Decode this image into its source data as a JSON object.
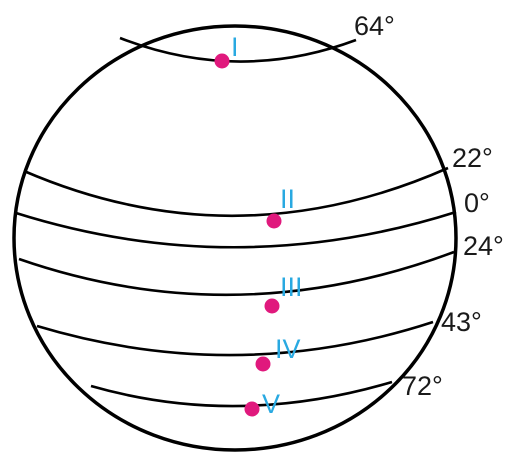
{
  "globe": {
    "colors": {
      "outline": "#000000",
      "point": "#e0197d",
      "point_label": "#29a9e1",
      "latitude_label": "#1a1a1a"
    },
    "latitudes": [
      {
        "label": "64°"
      },
      {
        "label": "22°"
      },
      {
        "label": "0°"
      },
      {
        "label": "24°"
      },
      {
        "label": "43°"
      },
      {
        "label": "72°"
      }
    ],
    "points": [
      {
        "label": "I"
      },
      {
        "label": "II"
      },
      {
        "label": "III"
      },
      {
        "label": "IV"
      },
      {
        "label": "V"
      }
    ]
  }
}
